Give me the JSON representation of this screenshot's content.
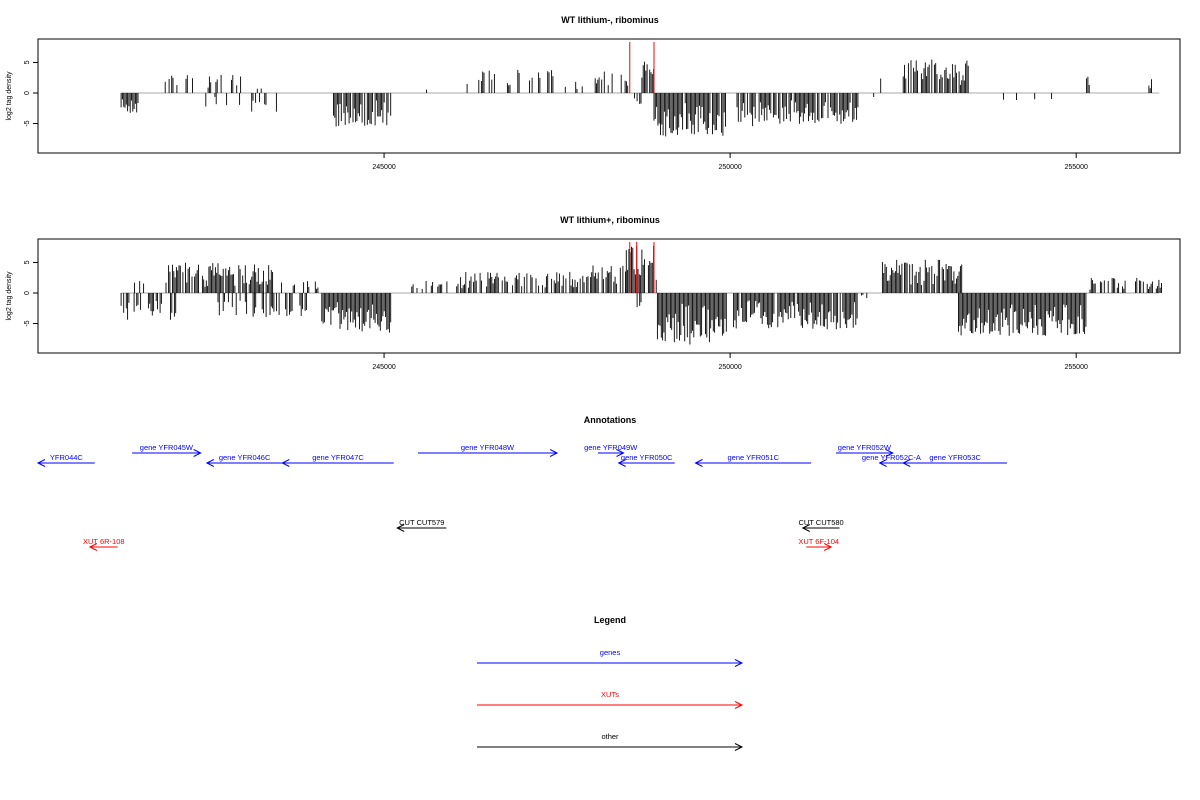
{
  "colors": {
    "gene": "#0000ff",
    "xut": "#ff0000",
    "other": "#000000",
    "peak": "#ff0000",
    "baseline": "#aaaaaa"
  },
  "chart_data": [
    {
      "type": "bar",
      "title": "WT lithium-, ribominus",
      "ylabel": "log2 tag density",
      "ylim": [
        -9,
        9
      ],
      "xlim": [
        240000,
        256500
      ],
      "xticks": [
        245000,
        250000,
        255000
      ],
      "xtick_labels": [
        "245000",
        "250000",
        "255000"
      ],
      "yticks": [
        -5,
        0,
        5
      ],
      "ytick_labels": [
        "-5",
        "0",
        "5"
      ],
      "grid": false,
      "peaks": [
        248550,
        248900
      ],
      "segments": [
        {
          "from": 241200,
          "to": 241450,
          "dir": -1,
          "amp": 3.6,
          "density": 0.9
        },
        {
          "from": 241800,
          "to": 242950,
          "dir": 1,
          "amp": 3.0,
          "density": 0.35
        },
        {
          "from": 242350,
          "to": 242950,
          "dir": -1,
          "amp": 2.5,
          "density": 0.2
        },
        {
          "from": 243050,
          "to": 243450,
          "dir": -1,
          "amp": 3.5,
          "density": 0.4
        },
        {
          "from": 243150,
          "to": 243350,
          "dir": 1,
          "amp": 0.8,
          "density": 0.15
        },
        {
          "from": 244250,
          "to": 245100,
          "dir": -1,
          "amp": 5.5,
          "density": 0.85
        },
        {
          "from": 245350,
          "to": 245850,
          "dir": 1,
          "amp": 0.8,
          "density": 0.06
        },
        {
          "from": 245500,
          "to": 245900,
          "dir": -1,
          "amp": 0.8,
          "density": 0.08
        },
        {
          "from": 246200,
          "to": 247450,
          "dir": 1,
          "amp": 3.8,
          "density": 0.25
        },
        {
          "from": 247600,
          "to": 248000,
          "dir": 1,
          "amp": 2.5,
          "density": 0.3
        },
        {
          "from": 248050,
          "to": 248550,
          "dir": 1,
          "amp": 3.8,
          "density": 0.4
        },
        {
          "from": 248650,
          "to": 248900,
          "dir": 1,
          "amp": 5.5,
          "density": 0.5
        },
        {
          "from": 248600,
          "to": 248750,
          "dir": -1,
          "amp": 2.0,
          "density": 0.4
        },
        {
          "from": 248900,
          "to": 249950,
          "dir": -1,
          "amp": 7.5,
          "density": 0.95
        },
        {
          "from": 250100,
          "to": 251850,
          "dir": -1,
          "amp": 5.5,
          "density": 0.8
        },
        {
          "from": 252100,
          "to": 252250,
          "dir": 1,
          "amp": 2.5,
          "density": 0.25
        },
        {
          "from": 252000,
          "to": 252200,
          "dir": -1,
          "amp": 0.9,
          "density": 0.15
        },
        {
          "from": 252500,
          "to": 253450,
          "dir": 1,
          "amp": 5.5,
          "density": 0.8
        },
        {
          "from": 253800,
          "to": 255000,
          "dir": -1,
          "amp": 2.8,
          "density": 0.12
        },
        {
          "from": 255150,
          "to": 255200,
          "dir": 1,
          "amp": 2.8,
          "density": 1.0
        },
        {
          "from": 256050,
          "to": 256100,
          "dir": 1,
          "amp": 2.4,
          "density": 1.0
        }
      ]
    },
    {
      "type": "bar",
      "title": "WT lithium+, ribominus",
      "ylabel": "log2 tag density",
      "ylim": [
        -9,
        9
      ],
      "xlim": [
        240000,
        256500
      ],
      "xticks": [
        245000,
        250000,
        255000
      ],
      "xtick_labels": [
        "245000",
        "250000",
        "255000"
      ],
      "yticks": [
        -5,
        0,
        5
      ],
      "ytick_labels": [
        "-5",
        "0",
        "5"
      ],
      "grid": false,
      "peaks": [
        248550,
        248650,
        248900
      ],
      "segments": [
        {
          "from": 241200,
          "to": 242000,
          "dir": -1,
          "amp": 4.5,
          "density": 0.55
        },
        {
          "from": 241300,
          "to": 241700,
          "dir": 1,
          "amp": 2.5,
          "density": 0.2
        },
        {
          "from": 241850,
          "to": 243400,
          "dir": 1,
          "amp": 5.0,
          "density": 0.85
        },
        {
          "from": 242600,
          "to": 243900,
          "dir": -1,
          "amp": 4.0,
          "density": 0.5
        },
        {
          "from": 243500,
          "to": 244100,
          "dir": 1,
          "amp": 2.0,
          "density": 0.3
        },
        {
          "from": 244100,
          "to": 245100,
          "dir": -1,
          "amp": 6.5,
          "density": 1.0
        },
        {
          "from": 245250,
          "to": 246000,
          "dir": 1,
          "amp": 2.0,
          "density": 0.3
        },
        {
          "from": 246050,
          "to": 248000,
          "dir": 1,
          "amp": 3.5,
          "density": 0.6
        },
        {
          "from": 248000,
          "to": 248500,
          "dir": 1,
          "amp": 4.5,
          "density": 0.7
        },
        {
          "from": 248500,
          "to": 248950,
          "dir": 1,
          "amp": 8.0,
          "density": 0.9
        },
        {
          "from": 248600,
          "to": 248800,
          "dir": -1,
          "amp": 3.0,
          "density": 0.5
        },
        {
          "from": 248950,
          "to": 249950,
          "dir": -1,
          "amp": 8.5,
          "density": 1.0
        },
        {
          "from": 250050,
          "to": 251850,
          "dir": -1,
          "amp": 6.0,
          "density": 0.95
        },
        {
          "from": 252200,
          "to": 253350,
          "dir": 1,
          "amp": 5.5,
          "density": 0.85
        },
        {
          "from": 253300,
          "to": 255150,
          "dir": -1,
          "amp": 7.0,
          "density": 1.0
        },
        {
          "from": 255200,
          "to": 256250,
          "dir": 1,
          "amp": 2.5,
          "density": 0.5
        },
        {
          "from": 251900,
          "to": 252100,
          "dir": -1,
          "amp": 1.0,
          "density": 0.2
        }
      ]
    }
  ],
  "annotations": {
    "title": "Annotations",
    "features": [
      {
        "label": "YFR044C",
        "kind": "gene",
        "strand": "-",
        "start": 240000,
        "end": 240820,
        "lane": 1
      },
      {
        "label": "gene YFR045W",
        "kind": "gene",
        "strand": "+",
        "start": 241360,
        "end": 242350,
        "lane": 0
      },
      {
        "label": "gene YFR046C",
        "kind": "gene",
        "strand": "-",
        "start": 242440,
        "end": 243530,
        "lane": 1
      },
      {
        "label": "gene YFR047C",
        "kind": "gene",
        "strand": "-",
        "start": 243530,
        "end": 245140,
        "lane": 1
      },
      {
        "label": "gene YFR048W",
        "kind": "gene",
        "strand": "+",
        "start": 245490,
        "end": 247500,
        "lane": 0
      },
      {
        "label": "gene YFR049W",
        "kind": "gene",
        "strand": "+",
        "start": 248090,
        "end": 248460,
        "lane": 0
      },
      {
        "label": "gene YFR050C",
        "kind": "gene",
        "strand": "-",
        "start": 248390,
        "end": 249200,
        "lane": 1
      },
      {
        "label": "gene YFR051C",
        "kind": "gene",
        "strand": "-",
        "start": 249500,
        "end": 251170,
        "lane": 1
      },
      {
        "label": "gene YFR052W",
        "kind": "gene",
        "strand": "+",
        "start": 251530,
        "end": 252350,
        "lane": 0
      },
      {
        "label": "gene YFR052C-A",
        "kind": "gene",
        "strand": "-",
        "start": 252160,
        "end": 252500,
        "lane": 1
      },
      {
        "label": "gene YFR053C",
        "kind": "gene",
        "strand": "-",
        "start": 252500,
        "end": 254000,
        "lane": 1
      },
      {
        "label": "CUT CUT579",
        "kind": "other",
        "strand": "-",
        "start": 245190,
        "end": 245900,
        "lane": 2
      },
      {
        "label": "CUT CUT580",
        "kind": "other",
        "strand": "-",
        "start": 251050,
        "end": 251580,
        "lane": 2
      },
      {
        "label": "XUT 6R-108",
        "kind": "xut",
        "strand": "-",
        "start": 240750,
        "end": 241150,
        "lane": 3
      },
      {
        "label": "XUT 6F-104",
        "kind": "xut",
        "strand": "+",
        "start": 251100,
        "end": 251460,
        "lane": 3
      }
    ]
  },
  "legend": {
    "title": "Legend",
    "entries": [
      {
        "label": "genes",
        "kind": "gene"
      },
      {
        "label": "XUTs",
        "kind": "xut"
      },
      {
        "label": "other",
        "kind": "other"
      }
    ]
  }
}
